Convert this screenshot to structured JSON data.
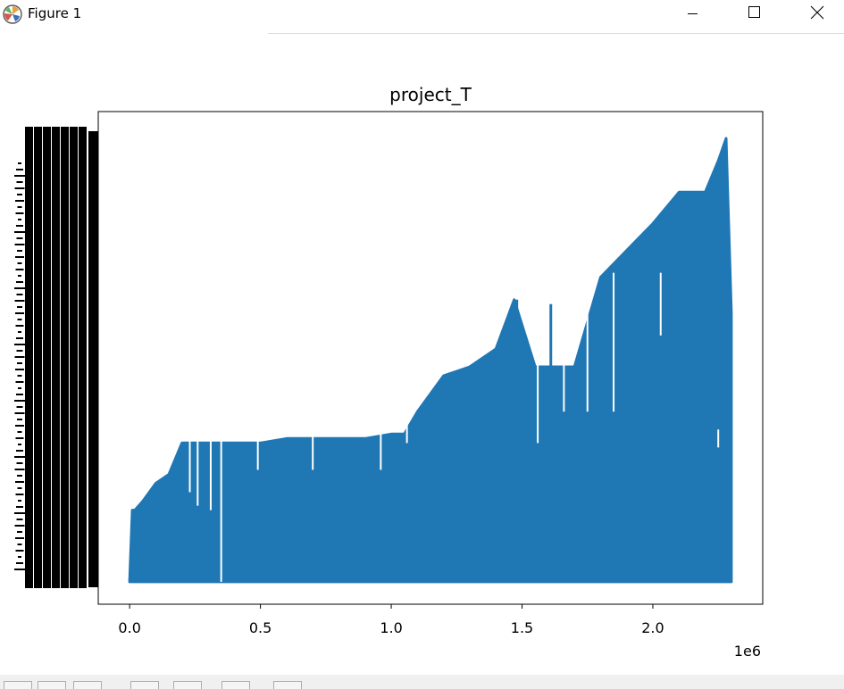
{
  "window": {
    "title": "Figure 1",
    "icon": "matplotlib-icon",
    "controls": [
      "minimize-icon",
      "maximize-icon",
      "close-icon"
    ]
  },
  "toolbar": {
    "buttons": [
      "home-icon",
      "back-icon",
      "forward-icon",
      "pan-icon",
      "zoom-icon",
      "configure-icon",
      "save-icon"
    ]
  },
  "chart_data": {
    "type": "line",
    "title": "project_T",
    "xlabel": "",
    "ylabel": "",
    "x_offset_label": "1e6",
    "x_ticks": [
      0.0,
      0.5,
      1.0,
      1.5,
      2.0
    ],
    "x_tick_labels": [
      "0.0",
      "0.5",
      "1.0",
      "1.5",
      "2.0"
    ],
    "xlim": [
      -0.12,
      2.42
    ],
    "ylim": [
      -0.05,
      1.05
    ],
    "y_tick_labels": "overlapping unreadable (black band)",
    "grid": false,
    "legend": false,
    "color": "#1f77b4",
    "series": [
      {
        "x": [
          0.0,
          0.01,
          0.02,
          0.05,
          0.1,
          0.15,
          0.2,
          0.3,
          0.4,
          0.5,
          0.6,
          0.7,
          0.8,
          0.9,
          1.0,
          1.05,
          1.1,
          1.2,
          1.3,
          1.4,
          1.47,
          1.55,
          1.6,
          1.7,
          1.8,
          1.9,
          2.0,
          2.1,
          2.2,
          2.25,
          2.28,
          2.3
        ],
        "upper": [
          0.0,
          0.16,
          0.16,
          0.18,
          0.22,
          0.24,
          0.31,
          0.31,
          0.31,
          0.31,
          0.32,
          0.32,
          0.32,
          0.32,
          0.33,
          0.33,
          0.38,
          0.46,
          0.48,
          0.52,
          0.63,
          0.48,
          0.48,
          0.48,
          0.68,
          0.74,
          0.8,
          0.87,
          0.87,
          0.94,
          0.99,
          0.6
        ],
        "lower": [
          0.0,
          0.0,
          0.0,
          0.0,
          0.0,
          0.0,
          0.0,
          0.0,
          0.0,
          0.0,
          0.0,
          0.0,
          0.0,
          0.0,
          0.0,
          0.0,
          0.0,
          0.0,
          0.0,
          0.0,
          0.0,
          0.0,
          0.0,
          0.0,
          0.0,
          0.0,
          0.0,
          0.0,
          0.0,
          0.0,
          0.0,
          0.0
        ],
        "spikes": [
          {
            "x": 0.27,
            "y": 0.31
          },
          {
            "x": 0.34,
            "y": 0.31
          },
          {
            "x": 1.48,
            "y": 0.63
          },
          {
            "x": 1.61,
            "y": 0.62
          },
          {
            "x": 1.78,
            "y": 0.63
          },
          {
            "x": 2.22,
            "y": 0.87
          },
          {
            "x": 2.28,
            "y": 0.99
          }
        ],
        "dips": [
          {
            "x": 0.23,
            "y": 0.2
          },
          {
            "x": 0.26,
            "y": 0.17
          },
          {
            "x": 0.31,
            "y": 0.16
          },
          {
            "x": 0.35,
            "y": 0.0
          },
          {
            "x": 0.49,
            "y": 0.25
          },
          {
            "x": 0.7,
            "y": 0.25
          },
          {
            "x": 0.96,
            "y": 0.25
          },
          {
            "x": 1.06,
            "y": 0.31
          },
          {
            "x": 1.56,
            "y": 0.31
          },
          {
            "x": 1.66,
            "y": 0.38
          },
          {
            "x": 1.75,
            "y": 0.38
          },
          {
            "x": 1.85,
            "y": 0.38
          },
          {
            "x": 2.03,
            "y": 0.55
          },
          {
            "x": 2.25,
            "y": 0.3
          }
        ]
      }
    ]
  }
}
